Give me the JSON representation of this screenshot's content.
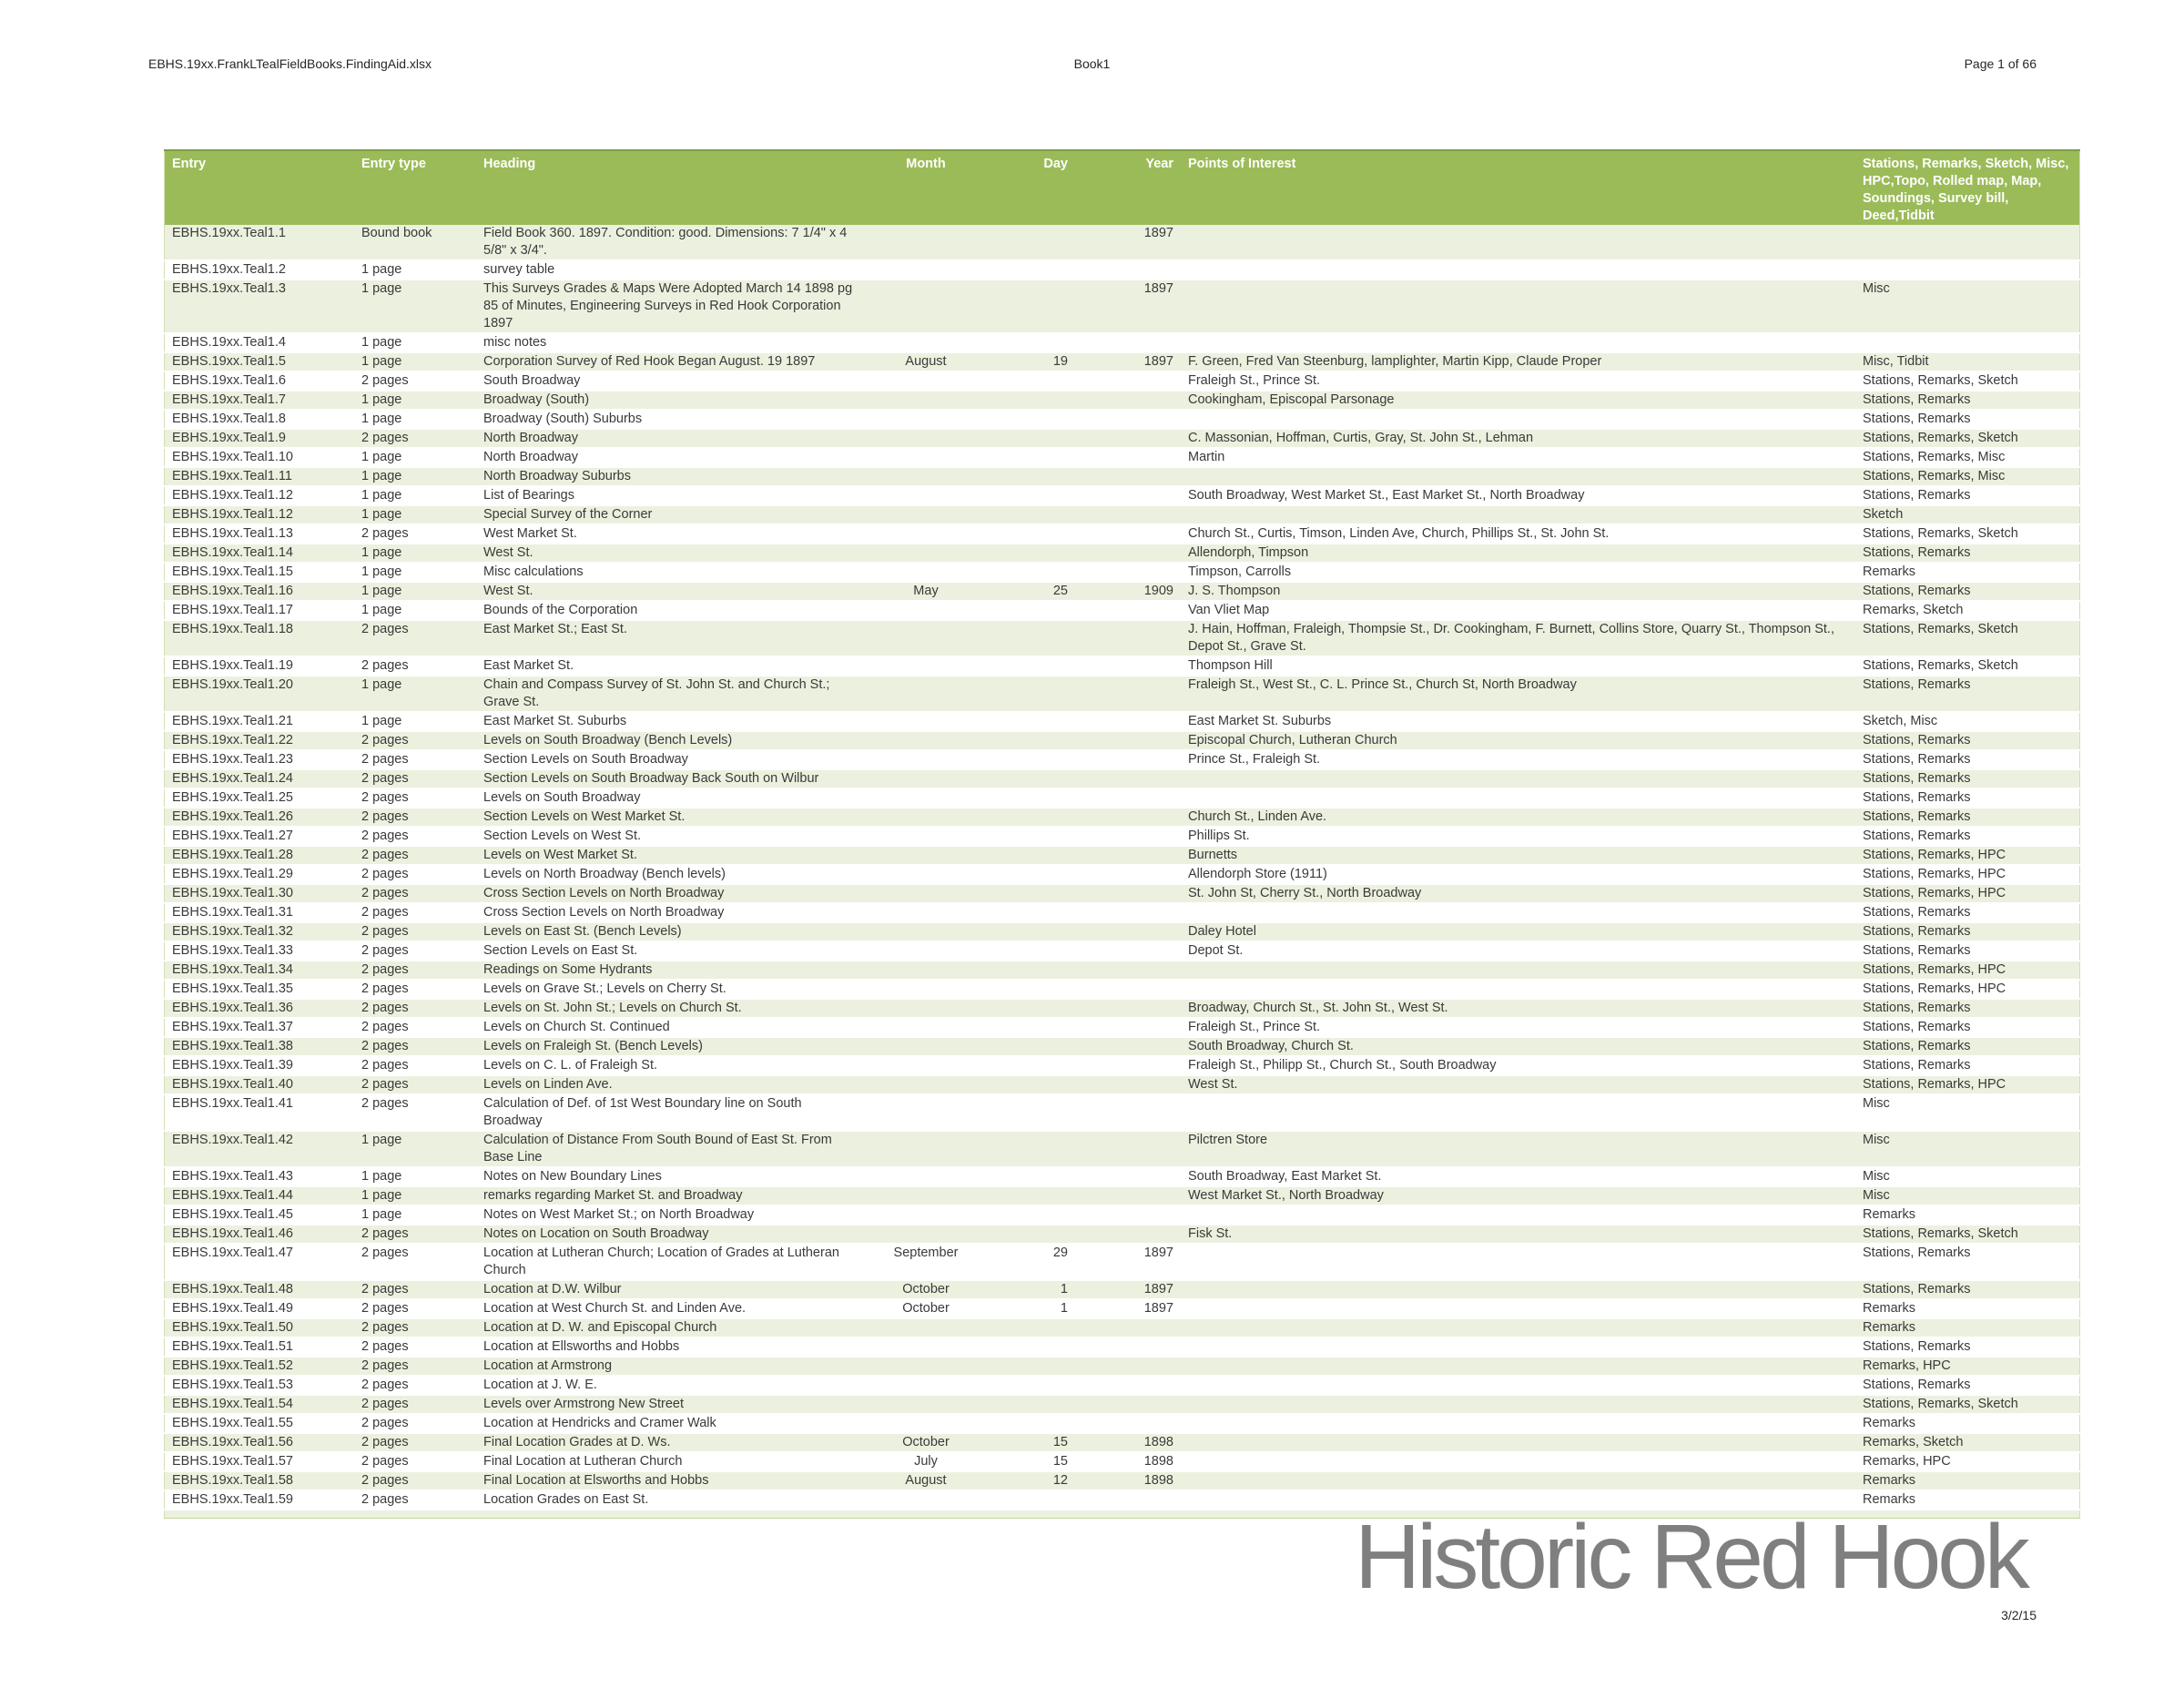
{
  "page": {
    "header": {
      "left": "EBHS.19xx.FrankLTealFieldBooks.FindingAid.xlsx",
      "center": "Book1",
      "right": "Page 1 of 66"
    },
    "footer": {
      "date": "3/2/15"
    },
    "watermark": "Historic Red Hook"
  },
  "colors": {
    "header_bg": "#9bbb59",
    "header_text": "#ffffff",
    "band_green": "#ebf1de",
    "band_white": "#ffffff",
    "table_border": "#c5d49c",
    "watermark_gray": "#7f7f7f"
  },
  "table": {
    "columns": [
      {
        "key": "entry",
        "label": "Entry"
      },
      {
        "key": "entry_type",
        "label": "Entry type"
      },
      {
        "key": "heading",
        "label": "Heading"
      },
      {
        "key": "month",
        "label": "Month"
      },
      {
        "key": "day",
        "label": "Day"
      },
      {
        "key": "year",
        "label": "Year"
      },
      {
        "key": "points_of_interest",
        "label": "Points of Interest"
      },
      {
        "key": "stations",
        "label": "Stations, Remarks, Sketch, Misc, HPC,Topo, Rolled map, Map, Soundings, Survey bill, Deed,Tidbit"
      }
    ],
    "rows": [
      [
        "EBHS.19xx.Teal1.1",
        "Bound book",
        "Field Book 360. 1897. Condition: good. Dimensions: 7 1/4\" x 4 5/8\" x 3/4\".",
        "",
        "",
        "1897",
        "",
        ""
      ],
      [
        "EBHS.19xx.Teal1.2",
        "1 page",
        "survey table",
        "",
        "",
        "",
        "",
        ""
      ],
      [
        "EBHS.19xx.Teal1.3",
        "1 page",
        "This Surveys Grades & Maps Were Adopted March 14 1898 pg 85 of Minutes, Engineering Surveys in Red Hook Corporation 1897",
        "",
        "",
        "1897",
        "",
        "Misc"
      ],
      [
        "EBHS.19xx.Teal1.4",
        "1 page",
        "misc notes",
        "",
        "",
        "",
        "",
        ""
      ],
      [
        "EBHS.19xx.Teal1.5",
        "1 page",
        "Corporation Survey of Red Hook Began August. 19 1897",
        "August",
        "19",
        "1897",
        "F. Green, Fred Van Steenburg, lamplighter, Martin Kipp, Claude Proper",
        "Misc, Tidbit"
      ],
      [
        "EBHS.19xx.Teal1.6",
        "2 pages",
        "South Broadway",
        "",
        "",
        "",
        "Fraleigh St., Prince St.",
        "Stations, Remarks, Sketch"
      ],
      [
        "EBHS.19xx.Teal1.7",
        "1 page",
        "Broadway (South)",
        "",
        "",
        "",
        "Cookingham, Episcopal Parsonage",
        "Stations, Remarks"
      ],
      [
        "EBHS.19xx.Teal1.8",
        "1 page",
        "Broadway (South) Suburbs",
        "",
        "",
        "",
        "",
        "Stations, Remarks"
      ],
      [
        "EBHS.19xx.Teal1.9",
        "2 pages",
        "North Broadway",
        "",
        "",
        "",
        "C. Massonian, Hoffman, Curtis, Gray, St. John St., Lehman",
        "Stations, Remarks, Sketch"
      ],
      [
        "EBHS.19xx.Teal1.10",
        "1 page",
        "North Broadway",
        "",
        "",
        "",
        "Martin",
        "Stations, Remarks, Misc"
      ],
      [
        "EBHS.19xx.Teal1.11",
        "1 page",
        "North Broadway Suburbs",
        "",
        "",
        "",
        "",
        "Stations, Remarks, Misc"
      ],
      [
        "EBHS.19xx.Teal1.12",
        "1 page",
        "List of Bearings",
        "",
        "",
        "",
        "South Broadway, West Market St., East Market St., North Broadway",
        "Stations, Remarks"
      ],
      [
        "EBHS.19xx.Teal1.12",
        "1 page",
        "Special Survey of the Corner",
        "",
        "",
        "",
        "",
        "Sketch"
      ],
      [
        "EBHS.19xx.Teal1.13",
        "2 pages",
        "West Market St.",
        "",
        "",
        "",
        "Church St., Curtis, Timson, Linden Ave, Church, Phillips St.,  St. John St.",
        "Stations, Remarks, Sketch"
      ],
      [
        "EBHS.19xx.Teal1.14",
        "1 page",
        "West St.",
        "",
        "",
        "",
        "Allendorph, Timpson",
        "Stations, Remarks"
      ],
      [
        "EBHS.19xx.Teal1.15",
        "1 page",
        "Misc calculations",
        "",
        "",
        "",
        "Timpson, Carrolls",
        "Remarks"
      ],
      [
        "EBHS.19xx.Teal1.16",
        "1 page",
        "West St.",
        "May",
        "25",
        "1909",
        "J. S. Thompson",
        "Stations, Remarks"
      ],
      [
        "EBHS.19xx.Teal1.17",
        "1 page",
        "Bounds of the Corporation",
        "",
        "",
        "",
        "Van Vliet Map",
        "Remarks, Sketch"
      ],
      [
        "EBHS.19xx.Teal1.18",
        "2 pages",
        "East Market St.; East St.",
        "",
        "",
        "",
        "J. Hain, Hoffman, Fraleigh, Thompsie St., Dr. Cookingham, F. Burnett,  Collins Store, Quarry St., Thompson St., Depot St., Grave St.",
        "Stations, Remarks, Sketch"
      ],
      [
        "EBHS.19xx.Teal1.19",
        "2 pages",
        "East Market St.",
        "",
        "",
        "",
        "Thompson Hill",
        "Stations, Remarks, Sketch"
      ],
      [
        "EBHS.19xx.Teal1.20",
        "1 page",
        "Chain and Compass Survey of St. John St. and Church St.; Grave St.",
        "",
        "",
        "",
        "Fraleigh St., West St., C. L. Prince St.,  Church St, North Broadway",
        "Stations, Remarks"
      ],
      [
        "EBHS.19xx.Teal1.21",
        "1 page",
        "East Market St. Suburbs",
        "",
        "",
        "",
        "East Market St. Suburbs",
        "Sketch, Misc"
      ],
      [
        "EBHS.19xx.Teal1.22",
        "2 pages",
        "Levels on South Broadway (Bench Levels)",
        "",
        "",
        "",
        "Episcopal Church, Lutheran Church",
        "Stations, Remarks"
      ],
      [
        "EBHS.19xx.Teal1.23",
        "2 pages",
        "Section Levels on South Broadway",
        "",
        "",
        "",
        "Prince St., Fraleigh St.",
        "Stations, Remarks"
      ],
      [
        "EBHS.19xx.Teal1.24",
        "2 pages",
        "Section Levels on South Broadway Back South on Wilbur",
        "",
        "",
        "",
        "",
        "Stations, Remarks"
      ],
      [
        "EBHS.19xx.Teal1.25",
        "2 pages",
        "Levels on South Broadway",
        "",
        "",
        "",
        "",
        "Stations, Remarks"
      ],
      [
        "EBHS.19xx.Teal1.26",
        "2 pages",
        "Section Levels on West Market St.",
        "",
        "",
        "",
        "Church St., Linden Ave.",
        "Stations, Remarks"
      ],
      [
        "EBHS.19xx.Teal1.27",
        "2 pages",
        "Section Levels on West St.",
        "",
        "",
        "",
        "Phillips St.",
        "Stations, Remarks"
      ],
      [
        "EBHS.19xx.Teal1.28",
        "2 pages",
        "Levels on West Market St.",
        "",
        "",
        "",
        "Burnetts",
        "Stations, Remarks, HPC"
      ],
      [
        "EBHS.19xx.Teal1.29",
        "2 pages",
        "Levels on North Broadway (Bench levels)",
        "",
        "",
        "",
        "Allendorph Store (1911)",
        "Stations, Remarks, HPC"
      ],
      [
        "EBHS.19xx.Teal1.30",
        "2 pages",
        "Cross Section Levels on North Broadway",
        "",
        "",
        "",
        "St. John St, Cherry St., North Broadway",
        "Stations, Remarks, HPC"
      ],
      [
        "EBHS.19xx.Teal1.31",
        "2 pages",
        "Cross Section Levels on North Broadway",
        "",
        "",
        "",
        "",
        "Stations, Remarks"
      ],
      [
        "EBHS.19xx.Teal1.32",
        "2 pages",
        "Levels on East St. (Bench Levels)",
        "",
        "",
        "",
        "Daley Hotel",
        "Stations, Remarks"
      ],
      [
        "EBHS.19xx.Teal1.33",
        "2 pages",
        "Section Levels on East St.",
        "",
        "",
        "",
        "Depot St.",
        "Stations, Remarks"
      ],
      [
        "EBHS.19xx.Teal1.34",
        "2 pages",
        "Readings on Some Hydrants",
        "",
        "",
        "",
        "",
        "Stations, Remarks, HPC"
      ],
      [
        "EBHS.19xx.Teal1.35",
        "2 pages",
        "Levels on Grave St.; Levels on Cherry St.",
        "",
        "",
        "",
        "",
        "Stations, Remarks, HPC"
      ],
      [
        "EBHS.19xx.Teal1.36",
        "2 pages",
        "Levels on St. John St.; Levels on Church St.",
        "",
        "",
        "",
        "Broadway, Church St., St. John St., West St.",
        "Stations, Remarks"
      ],
      [
        "EBHS.19xx.Teal1.37",
        "2 pages",
        "Levels on Church St. Continued",
        "",
        "",
        "",
        "Fraleigh St., Prince St.",
        "Stations, Remarks"
      ],
      [
        "EBHS.19xx.Teal1.38",
        "2 pages",
        "Levels on Fraleigh St. (Bench Levels)",
        "",
        "",
        "",
        "South Broadway, Church St.",
        "Stations, Remarks"
      ],
      [
        "EBHS.19xx.Teal1.39",
        "2 pages",
        "Levels on C. L. of Fraleigh St.",
        "",
        "",
        "",
        "Fraleigh St., Philipp St., Church St., South Broadway",
        "Stations, Remarks"
      ],
      [
        "EBHS.19xx.Teal1.40",
        "2 pages",
        "Levels on Linden Ave.",
        "",
        "",
        "",
        "West St.",
        "Stations, Remarks, HPC"
      ],
      [
        "EBHS.19xx.Teal1.41",
        "2 pages",
        "Calculation of Def. of  1st West Boundary line on South Broadway",
        "",
        "",
        "",
        "",
        "Misc"
      ],
      [
        "EBHS.19xx.Teal1.42",
        "1 page",
        "Calculation of Distance From South Bound of East St. From Base Line",
        "",
        "",
        "",
        "Pilctren Store",
        "Misc"
      ],
      [
        "EBHS.19xx.Teal1.43",
        "1 page",
        "Notes on New Boundary Lines",
        "",
        "",
        "",
        "South Broadway, East Market St.",
        "Misc"
      ],
      [
        "EBHS.19xx.Teal1.44",
        "1 page",
        "remarks regarding Market St. and Broadway",
        "",
        "",
        "",
        "West Market St., North Broadway",
        "Misc"
      ],
      [
        "EBHS.19xx.Teal1.45",
        "1 page",
        "Notes on West Market St.; on North Broadway",
        "",
        "",
        "",
        "",
        "Remarks"
      ],
      [
        "EBHS.19xx.Teal1.46",
        "2 pages",
        "Notes on Location on South Broadway",
        "",
        "",
        "",
        "Fisk St.",
        "Stations, Remarks, Sketch"
      ],
      [
        "EBHS.19xx.Teal1.47",
        "2 pages",
        "Location at Lutheran Church; Location of Grades at Lutheran Church",
        "September",
        "29",
        "1897",
        "",
        "Stations, Remarks"
      ],
      [
        "EBHS.19xx.Teal1.48",
        "2 pages",
        "Location at D.W. Wilbur",
        "October",
        "1",
        "1897",
        "",
        "Stations, Remarks"
      ],
      [
        "EBHS.19xx.Teal1.49",
        "2 pages",
        "Location at West Church St. and Linden Ave.",
        "October",
        "1",
        "1897",
        "",
        "Remarks"
      ],
      [
        "EBHS.19xx.Teal1.50",
        "2 pages",
        "Location at D. W. and Episcopal Church",
        "",
        "",
        "",
        "",
        "Remarks"
      ],
      [
        "EBHS.19xx.Teal1.51",
        "2 pages",
        "Location at Ellsworths and Hobbs",
        "",
        "",
        "",
        "",
        "Stations, Remarks"
      ],
      [
        "EBHS.19xx.Teal1.52",
        "2 pages",
        "Location at Armstrong",
        "",
        "",
        "",
        "",
        "Remarks, HPC"
      ],
      [
        "EBHS.19xx.Teal1.53",
        "2 pages",
        "Location at J. W. E.",
        "",
        "",
        "",
        "",
        "Stations, Remarks"
      ],
      [
        "EBHS.19xx.Teal1.54",
        "2 pages",
        "Levels over Armstrong New Street",
        "",
        "",
        "",
        "",
        "Stations, Remarks, Sketch"
      ],
      [
        "EBHS.19xx.Teal1.55",
        "2 pages",
        "Location at Hendricks and Cramer Walk",
        "",
        "",
        "",
        "",
        "Remarks"
      ],
      [
        "EBHS.19xx.Teal1.56",
        "2 pages",
        "Final Location Grades at D. Ws.",
        "October",
        "15",
        "1898",
        "",
        "Remarks, Sketch"
      ],
      [
        "EBHS.19xx.Teal1.57",
        "2 pages",
        "Final Location at Lutheran Church",
        "July",
        "15",
        "1898",
        "",
        "Remarks, HPC"
      ],
      [
        "EBHS.19xx.Teal1.58",
        "2 pages",
        "Final Location at Elsworths and Hobbs",
        "August",
        "12",
        "1898",
        "",
        "Remarks"
      ],
      [
        "EBHS.19xx.Teal1.59",
        "2 pages",
        "Location Grades on East St.",
        "",
        "",
        "",
        "",
        "Remarks"
      ]
    ]
  }
}
